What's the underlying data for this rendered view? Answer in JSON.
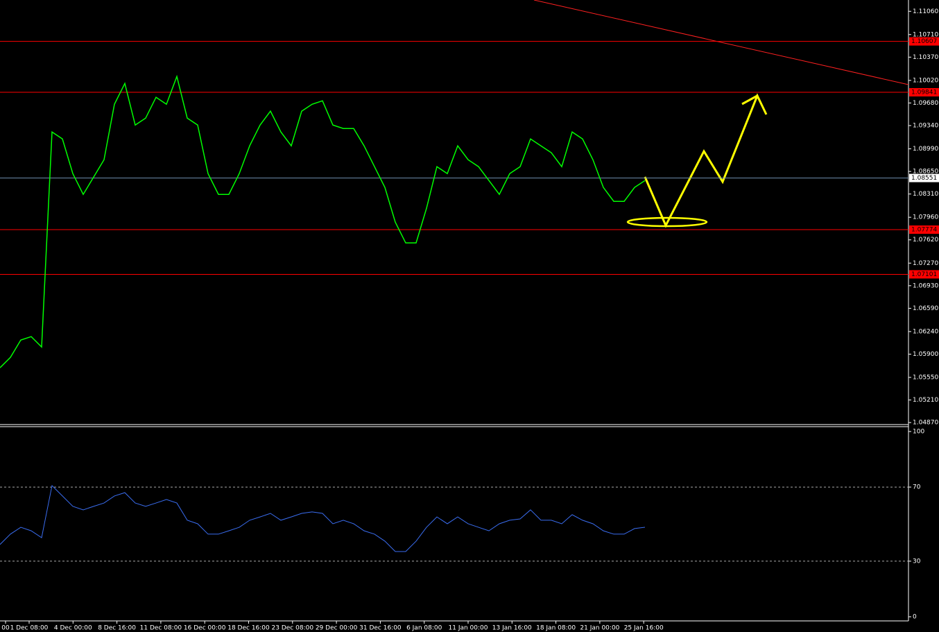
{
  "chart_data": [
    {
      "type": "line",
      "values": [
        1.05695,
        1.05851,
        1.06112,
        1.06164,
        1.06008,
        1.09244,
        1.09139,
        1.08617,
        1.08304,
        1.08565,
        1.08826,
        1.09661,
        1.09974,
        1.09348,
        1.09452,
        1.09766,
        1.09661,
        1.10079,
        1.09452,
        1.09348,
        1.08617,
        1.08304,
        1.08304,
        1.08617,
        1.09035,
        1.09348,
        1.09557,
        1.09244,
        1.09035,
        1.09557,
        1.09661,
        1.09713,
        1.09348,
        1.09296,
        1.09296,
        1.09035,
        1.08722,
        1.08409,
        1.07887,
        1.07574,
        1.07574,
        1.08095,
        1.08722,
        1.08617,
        1.09035,
        1.08826,
        1.08722,
        1.08513,
        1.08304,
        1.08617,
        1.08722,
        1.09139,
        1.09035,
        1.08931,
        1.08722,
        1.09244,
        1.09139,
        1.08826,
        1.08409,
        1.082,
        1.082,
        1.08409,
        1.08513
      ],
      "color": "#00ff00",
      "ylim": [
        1.0484,
        1.1123
      ],
      "yticks": [
        {
          "value": 1.1106,
          "label": "1.11060"
        },
        {
          "value": 1.1071,
          "label": "1.10710"
        },
        {
          "value": 1.1037,
          "label": "1.10370"
        },
        {
          "value": 1.1002,
          "label": "1.10020"
        },
        {
          "value": 1.0968,
          "label": "1.09680"
        },
        {
          "value": 1.0934,
          "label": "1.09340"
        },
        {
          "value": 1.0899,
          "label": "1.08990"
        },
        {
          "value": 1.0865,
          "label": "1.08650"
        },
        {
          "value": 1.0831,
          "label": "1.08310"
        },
        {
          "value": 1.0796,
          "label": "1.07960"
        },
        {
          "value": 1.0762,
          "label": "1.07620"
        },
        {
          "value": 1.0727,
          "label": "1.07270"
        },
        {
          "value": 1.0693,
          "label": "1.06930"
        },
        {
          "value": 1.0659,
          "label": "1.06590"
        },
        {
          "value": 1.0624,
          "label": "1.06240"
        },
        {
          "value": 1.059,
          "label": "1.05900"
        },
        {
          "value": 1.0555,
          "label": "1.05550"
        },
        {
          "value": 1.0521,
          "label": "1.05210"
        },
        {
          "value": 1.0487,
          "label": "1.04870"
        }
      ],
      "levels": [
        {
          "value": 1.10607,
          "color": "#ff0000"
        },
        {
          "value": 1.09841,
          "color": "#ff0000"
        },
        {
          "value": 1.08551,
          "color": "#6f8fb0"
        },
        {
          "value": 1.07774,
          "color": "#ff0000"
        },
        {
          "value": 1.07101,
          "color": "#ff0000"
        }
      ],
      "x_labels": [
        "00",
        "1 Dec 08:00",
        "4 Dec 00:00",
        "8 Dec 16:00",
        "11 Dec 08:00",
        "16 Dec 00:00",
        "18 Dec 16:00",
        "23 Dec 08:00",
        "29 Dec 00:00",
        "31 Dec 16:00",
        "6 Jan 08:00",
        "11 Jan 00:00",
        "13 Jan 16:00",
        "18 Jan 08:00",
        "21 Jan 00:00",
        "25 Jan 16:00"
      ]
    },
    {
      "type": "line",
      "values": [
        39.0,
        44.6,
        48.3,
        46.4,
        42.7,
        70.8,
        65.2,
        59.6,
        57.7,
        59.6,
        61.4,
        65.2,
        67.0,
        61.4,
        59.6,
        61.4,
        63.3,
        61.4,
        52.1,
        50.2,
        44.6,
        44.6,
        46.4,
        48.3,
        52.1,
        53.9,
        55.8,
        52.1,
        53.9,
        55.8,
        56.6,
        55.8,
        50.2,
        52.1,
        50.2,
        46.4,
        44.6,
        40.8,
        35.2,
        35.2,
        40.8,
        48.3,
        53.9,
        50.2,
        53.9,
        50.2,
        48.3,
        46.4,
        50.2,
        52.1,
        52.8,
        57.7,
        52.1,
        52.1,
        50.2,
        55.1,
        52.1,
        50.2,
        46.4,
        44.6,
        44.6,
        47.6,
        48.3
      ],
      "color": "#3a6df0",
      "ylim": [
        0,
        100
      ],
      "yticks": [
        0,
        30,
        70,
        100
      ],
      "levels": [
        {
          "value": 70,
          "color": "#aaaaaa"
        },
        {
          "value": 30,
          "color": "#aaaaaa"
        }
      ]
    }
  ]
}
